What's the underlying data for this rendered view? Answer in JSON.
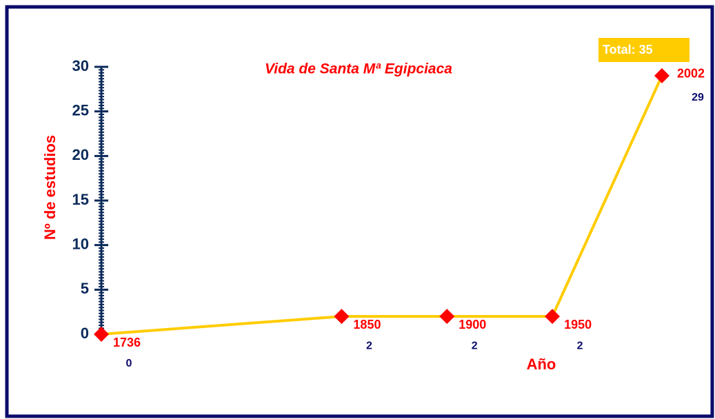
{
  "chart_data": {
    "type": "line",
    "title": "Vida de Santa Mª Egipciaca",
    "y_label": "Nº de estudios",
    "x_label": "Año",
    "annotation": "Total: 35",
    "x": [
      1736,
      1850,
      1900,
      1950,
      2002
    ],
    "values": [
      0,
      2,
      2,
      2,
      29
    ],
    "color": "#ffcc00",
    "marker_color": "#ff0000",
    "xlim": [
      1736,
      2002
    ],
    "ylim": [
      0,
      30
    ],
    "yticks": [
      0,
      5,
      10,
      15,
      20,
      25,
      30
    ]
  }
}
